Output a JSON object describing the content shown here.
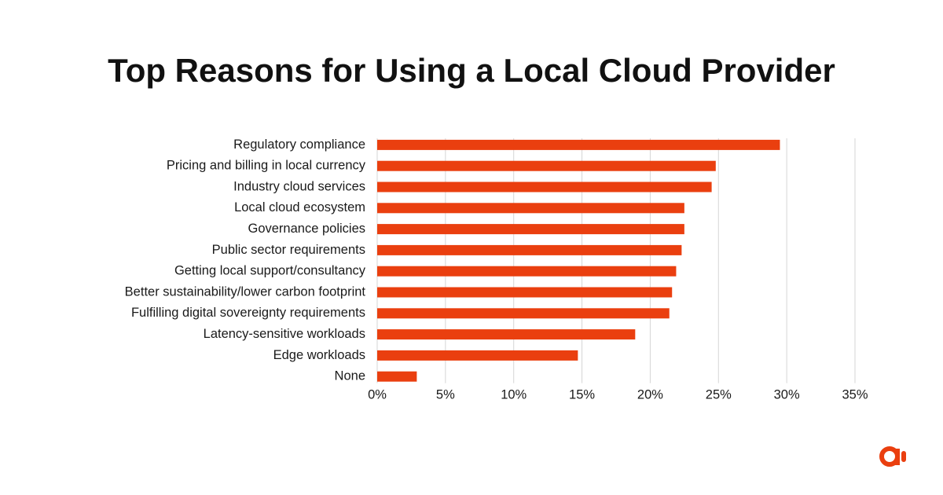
{
  "chart_data": {
    "type": "bar",
    "orientation": "horizontal",
    "title": "Top Reasons for Using a Local Cloud Provider",
    "categories": [
      "Regulatory compliance",
      "Pricing and billing in local currency",
      "Industry cloud services",
      "Local cloud ecosystem",
      "Governance policies",
      "Public sector requirements",
      "Getting local support/consultancy",
      "Better sustainability/lower carbon footprint",
      "Fulfilling digital sovereignty requirements",
      "Latency-sensitive workloads",
      "Edge workloads",
      "None"
    ],
    "values": [
      29.5,
      24.8,
      24.5,
      22.5,
      22.5,
      22.3,
      21.9,
      21.6,
      21.4,
      18.9,
      14.7,
      2.9
    ],
    "color": "#ea3f0f",
    "xlim": [
      0,
      35
    ],
    "xticks": [
      {
        "value": 0,
        "label": "0%"
      },
      {
        "value": 5,
        "label": "5%"
      },
      {
        "value": 10,
        "label": "10%"
      },
      {
        "value": 15,
        "label": "15%"
      },
      {
        "value": 20,
        "label": "20%"
      },
      {
        "value": 25,
        "label": "25%"
      },
      {
        "value": 30,
        "label": "30%"
      },
      {
        "value": 35,
        "label": "35%"
      }
    ],
    "grid": true
  }
}
